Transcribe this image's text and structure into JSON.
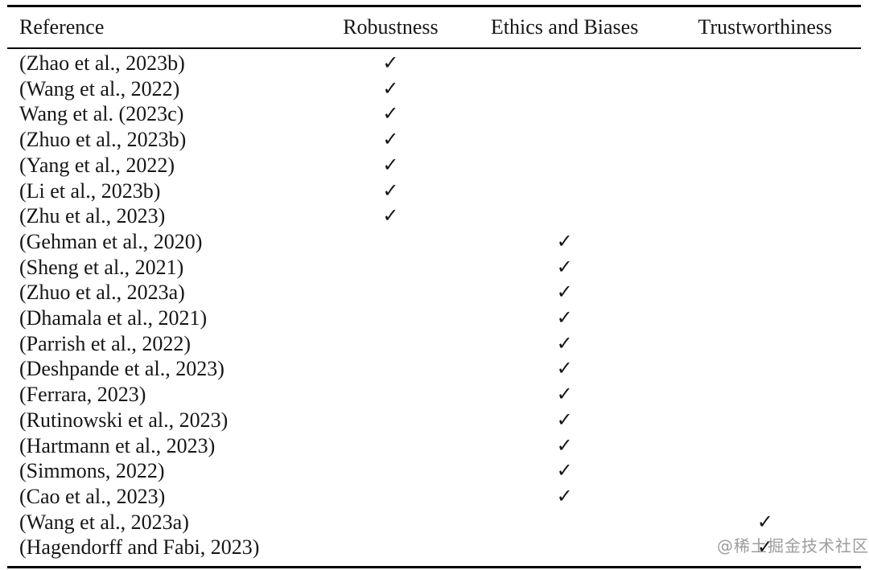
{
  "page": {
    "watermark": "@稀土掘金技术社区"
  },
  "colors": {
    "text": "#161616",
    "rule": "#000000",
    "watermark": "#919191",
    "background": "#ffffff"
  },
  "table": {
    "columns": [
      "Reference",
      "Robustness",
      "Ethics and Biases",
      "Trustworthiness"
    ],
    "check_glyph": "✓",
    "rows": [
      {
        "reference": "(Zhao et al., 2023b)",
        "robustness": "✓",
        "ethics": "",
        "trustworthiness": ""
      },
      {
        "reference": "(Wang et al., 2022)",
        "robustness": "✓",
        "ethics": "",
        "trustworthiness": ""
      },
      {
        "reference": "Wang et al. (2023c)",
        "robustness": "✓",
        "ethics": "",
        "trustworthiness": ""
      },
      {
        "reference": "(Zhuo et al., 2023b)",
        "robustness": "✓",
        "ethics": "",
        "trustworthiness": ""
      },
      {
        "reference": "(Yang et al., 2022)",
        "robustness": "✓",
        "ethics": "",
        "trustworthiness": ""
      },
      {
        "reference": "(Li et al., 2023b)",
        "robustness": "✓",
        "ethics": "",
        "trustworthiness": ""
      },
      {
        "reference": "(Zhu et al., 2023)",
        "robustness": "✓",
        "ethics": "",
        "trustworthiness": ""
      },
      {
        "reference": "(Gehman et al., 2020)",
        "robustness": "",
        "ethics": "✓",
        "trustworthiness": ""
      },
      {
        "reference": "(Sheng et al., 2021)",
        "robustness": "",
        "ethics": "✓",
        "trustworthiness": ""
      },
      {
        "reference": "(Zhuo et al., 2023a)",
        "robustness": "",
        "ethics": "✓",
        "trustworthiness": ""
      },
      {
        "reference": "(Dhamala et al., 2021)",
        "robustness": "",
        "ethics": "✓",
        "trustworthiness": ""
      },
      {
        "reference": "(Parrish et al., 2022)",
        "robustness": "",
        "ethics": "✓",
        "trustworthiness": ""
      },
      {
        "reference": "(Deshpande et al., 2023)",
        "robustness": "",
        "ethics": "✓",
        "trustworthiness": ""
      },
      {
        "reference": "(Ferrara, 2023)",
        "robustness": "",
        "ethics": "✓",
        "trustworthiness": ""
      },
      {
        "reference": "(Rutinowski et al., 2023)",
        "robustness": "",
        "ethics": "✓",
        "trustworthiness": ""
      },
      {
        "reference": "(Hartmann et al., 2023)",
        "robustness": "",
        "ethics": "✓",
        "trustworthiness": ""
      },
      {
        "reference": "(Simmons, 2022)",
        "robustness": "",
        "ethics": "✓",
        "trustworthiness": ""
      },
      {
        "reference": "(Cao et al., 2023)",
        "robustness": "",
        "ethics": "✓",
        "trustworthiness": ""
      },
      {
        "reference": "(Wang et al., 2023a)",
        "robustness": "",
        "ethics": "",
        "trustworthiness": "✓"
      },
      {
        "reference": "(Hagendorff and Fabi, 2023)",
        "robustness": "",
        "ethics": "",
        "trustworthiness": "✓"
      }
    ]
  }
}
